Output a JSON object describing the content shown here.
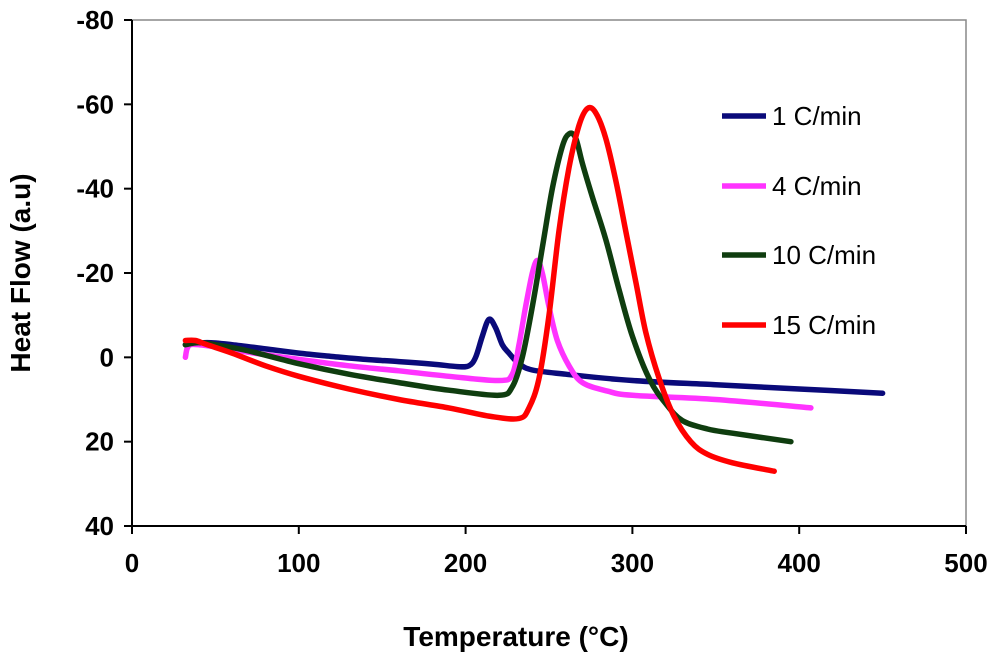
{
  "chart_data": {
    "type": "line",
    "title": "",
    "xlabel": "Temperature (°C)",
    "ylabel": "Heat Flow (a.u)",
    "xlim": [
      0,
      500
    ],
    "ylim": [
      40,
      -80
    ],
    "y_inverted": true,
    "grid": false,
    "legend_position": "right",
    "x_ticks": [
      0,
      100,
      200,
      300,
      400,
      500
    ],
    "y_ticks": [
      -80,
      -60,
      -40,
      -20,
      0,
      20,
      40
    ],
    "x_tick_labels": [
      "0",
      "100",
      "200",
      "300",
      "400",
      "500"
    ],
    "y_tick_labels": [
      "-80",
      "-60",
      "-40",
      "-20",
      "0",
      "20",
      "40"
    ],
    "series": [
      {
        "name": "1 C/min",
        "label": "1 C/min",
        "color": "#0a0a7a",
        "x": [
          32,
          45,
          60,
          80,
          100,
          120,
          140,
          160,
          180,
          195,
          202,
          206,
          210,
          214,
          218,
          222,
          226,
          232,
          240,
          260,
          300,
          350,
          400,
          450
        ],
        "y": [
          -3,
          -3.5,
          -3,
          -2,
          -1,
          -0.2,
          0.5,
          1,
          1.6,
          2.2,
          2,
          0,
          -5,
          -9,
          -7,
          -3,
          -1,
          1.5,
          3,
          4,
          5.5,
          6.5,
          7.5,
          8.5
        ]
      },
      {
        "name": "4 C/min",
        "label": "4 C/min",
        "color": "#ff33ff",
        "x": [
          32,
          33,
          35,
          40,
          50,
          70,
          100,
          130,
          160,
          190,
          220,
          228,
          232,
          236,
          240,
          243,
          246,
          250,
          255,
          262,
          270,
          285,
          300,
          350,
          407
        ],
        "y": [
          0,
          -2,
          -3,
          -3,
          -2.5,
          -1.2,
          0.5,
          2,
          3.2,
          4.5,
          5.5,
          4,
          -3,
          -12,
          -20,
          -23,
          -20,
          -12,
          -4,
          2,
          6,
          8,
          9,
          10,
          12
        ]
      },
      {
        "name": "10 C/min",
        "label": "10 C/min",
        "color": "#0f3d0f",
        "x": [
          32,
          40,
          50,
          70,
          100,
          130,
          160,
          190,
          220,
          228,
          234,
          240,
          246,
          252,
          258,
          262,
          266,
          270,
          276,
          284,
          292,
          300,
          310,
          320,
          330,
          345,
          360,
          395
        ],
        "y": [
          -3,
          -3.5,
          -3,
          -1.5,
          1.5,
          4,
          6,
          7.8,
          9,
          7,
          0,
          -12,
          -26,
          -40,
          -50,
          -53,
          -52,
          -46,
          -38,
          -28,
          -16,
          -5,
          5,
          11,
          15,
          17,
          18,
          20
        ]
      },
      {
        "name": "15 C/min",
        "label": "15 C/min",
        "color": "#ff0000",
        "x": [
          32,
          38,
          45,
          60,
          80,
          100,
          130,
          160,
          190,
          215,
          232,
          238,
          244,
          250,
          256,
          262,
          268,
          273,
          278,
          284,
          290,
          296,
          302,
          308,
          316,
          325,
          335,
          345,
          360,
          385
        ],
        "y": [
          -4,
          -4,
          -3,
          -1,
          2,
          4.5,
          7.5,
          10,
          12,
          14,
          14.5,
          12,
          5,
          -10,
          -30,
          -45,
          -55,
          -59,
          -58,
          -52,
          -42,
          -30,
          -18,
          -6,
          5,
          14,
          20,
          23,
          25,
          27
        ]
      }
    ]
  }
}
